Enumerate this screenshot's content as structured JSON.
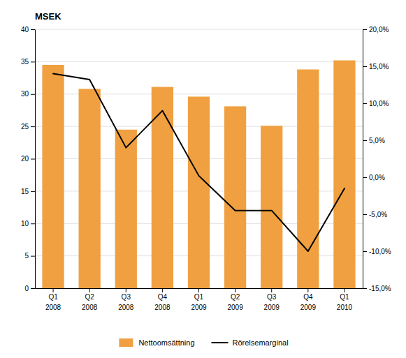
{
  "chart_data": {
    "type": "bar",
    "ylabel": "MSEK",
    "categories": [
      [
        "Q1",
        "2008"
      ],
      [
        "Q2",
        "2008"
      ],
      [
        "Q3",
        "2008"
      ],
      [
        "Q4",
        "2008"
      ],
      [
        "Q1",
        "2009"
      ],
      [
        "Q2",
        "2009"
      ],
      [
        "Q3",
        "2009"
      ],
      [
        "Q4",
        "2009"
      ],
      [
        "Q1",
        "2010"
      ]
    ],
    "series": [
      {
        "name": "Nettoomsättning",
        "type": "bar",
        "color": "#F0A040",
        "values": [
          34.5,
          30.8,
          24.5,
          31.1,
          29.6,
          28.1,
          25.1,
          33.8,
          35.2
        ]
      },
      {
        "name": "Rörelsemarginal",
        "type": "line",
        "color": "#000000",
        "axis": "y2",
        "values": [
          0.14,
          0.132,
          0.04,
          0.09,
          0.002,
          -0.045,
          -0.045,
          -0.1,
          -0.015
        ]
      }
    ],
    "ylim": [
      0,
      40
    ],
    "yticks": [
      0,
      5,
      10,
      15,
      20,
      25,
      30,
      35,
      40
    ],
    "y2lim": [
      -0.15,
      0.2
    ],
    "y2ticks": [
      {
        "value": -0.15,
        "label": "-15,0%"
      },
      {
        "value": -0.1,
        "label": "-10,0%"
      },
      {
        "value": -0.05,
        "label": "-5,0%"
      },
      {
        "value": 0.0,
        "label": "0,0%"
      },
      {
        "value": 0.05,
        "label": "5,0%"
      },
      {
        "value": 0.1,
        "label": "10,0%"
      },
      {
        "value": 0.15,
        "label": "15,0%"
      },
      {
        "value": 0.2,
        "label": "20,0%"
      }
    ],
    "grid": true,
    "legend": "bottom"
  }
}
